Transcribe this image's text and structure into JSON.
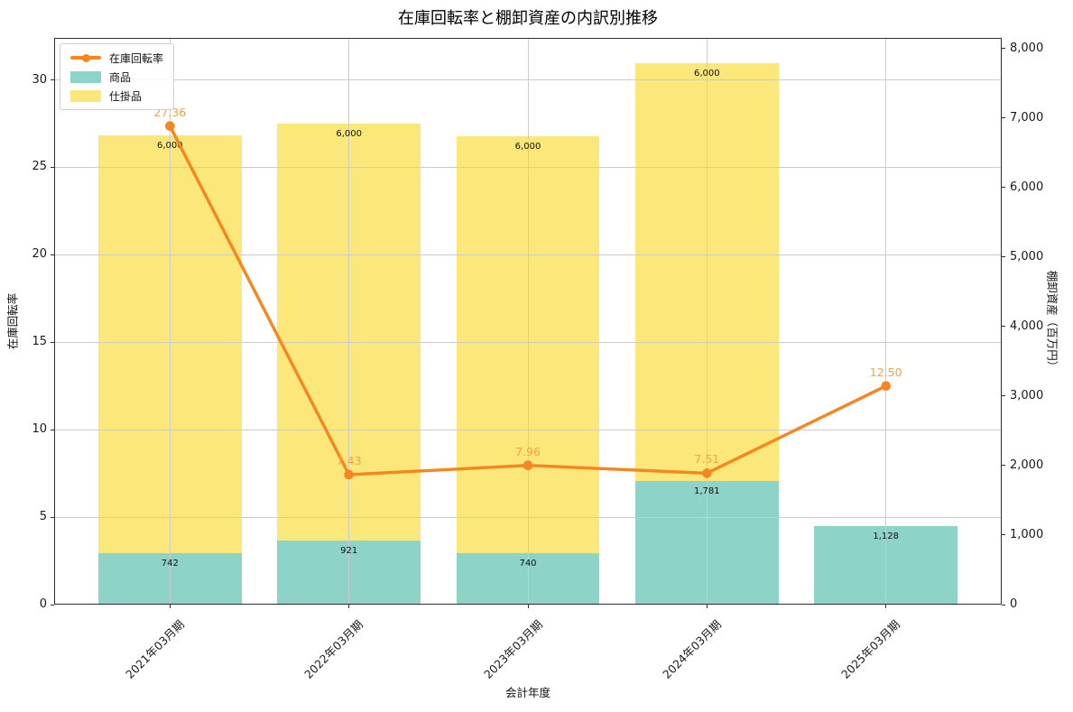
{
  "chart_data": {
    "type": "combo-stacked-bar-line",
    "title": "在庫回転率と棚卸資産の内訳別推移",
    "categories": [
      "2021年03月期",
      "2022年03月期",
      "2023年03月期",
      "2024年03月期",
      "2025年03月期"
    ],
    "bar_series": [
      {
        "name": "商品",
        "color": "#8DD3C7",
        "values": [
          742,
          921,
          740,
          1781,
          1128
        ],
        "labels": [
          "742",
          "921",
          "740",
          "1,781",
          "1,128"
        ]
      },
      {
        "name": "仕掛品",
        "color": "#FBE77A",
        "values": [
          6000,
          6000,
          6000,
          6000,
          0
        ],
        "labels": [
          "6,000",
          "6,000",
          "6,000",
          "6,000",
          ""
        ]
      }
    ],
    "line_series": {
      "name": "在庫回転率",
      "color": "#F6861F",
      "label_color": "#F2A24C",
      "values": [
        27.36,
        7.43,
        7.96,
        7.51,
        12.5
      ],
      "labels": [
        "27.36",
        "7.43",
        "7.96",
        "7.51",
        "12.50"
      ]
    },
    "axes": {
      "x": {
        "label": "会計年度"
      },
      "left": {
        "label": "在庫回転率",
        "ticks": [
          0,
          5,
          10,
          15,
          20,
          25,
          30
        ],
        "tick_labels": [
          "0",
          "5",
          "10",
          "15",
          "20",
          "25",
          "30"
        ],
        "range": [
          0,
          32.4
        ]
      },
      "right": {
        "label": "棚卸資産（百万円）",
        "ticks": [
          0,
          1000,
          2000,
          3000,
          4000,
          5000,
          6000,
          7000,
          8000
        ],
        "tick_labels": [
          "0",
          "1,000",
          "2,000",
          "3,000",
          "4,000",
          "5,000",
          "6,000",
          "7,000",
          "8,000"
        ],
        "range": [
          0,
          8150
        ]
      }
    },
    "legend": {
      "position": "upper-left",
      "entries": [
        {
          "label": "在庫回転率",
          "type": "line",
          "color": "#F6861F"
        },
        {
          "label": "商品",
          "type": "swatch",
          "color": "#8DD3C7"
        },
        {
          "label": "仕掛品",
          "type": "swatch",
          "color": "#FBE77A"
        }
      ]
    },
    "grid": {
      "color": "#cccccc",
      "horizontal": true,
      "vertical": true
    }
  }
}
